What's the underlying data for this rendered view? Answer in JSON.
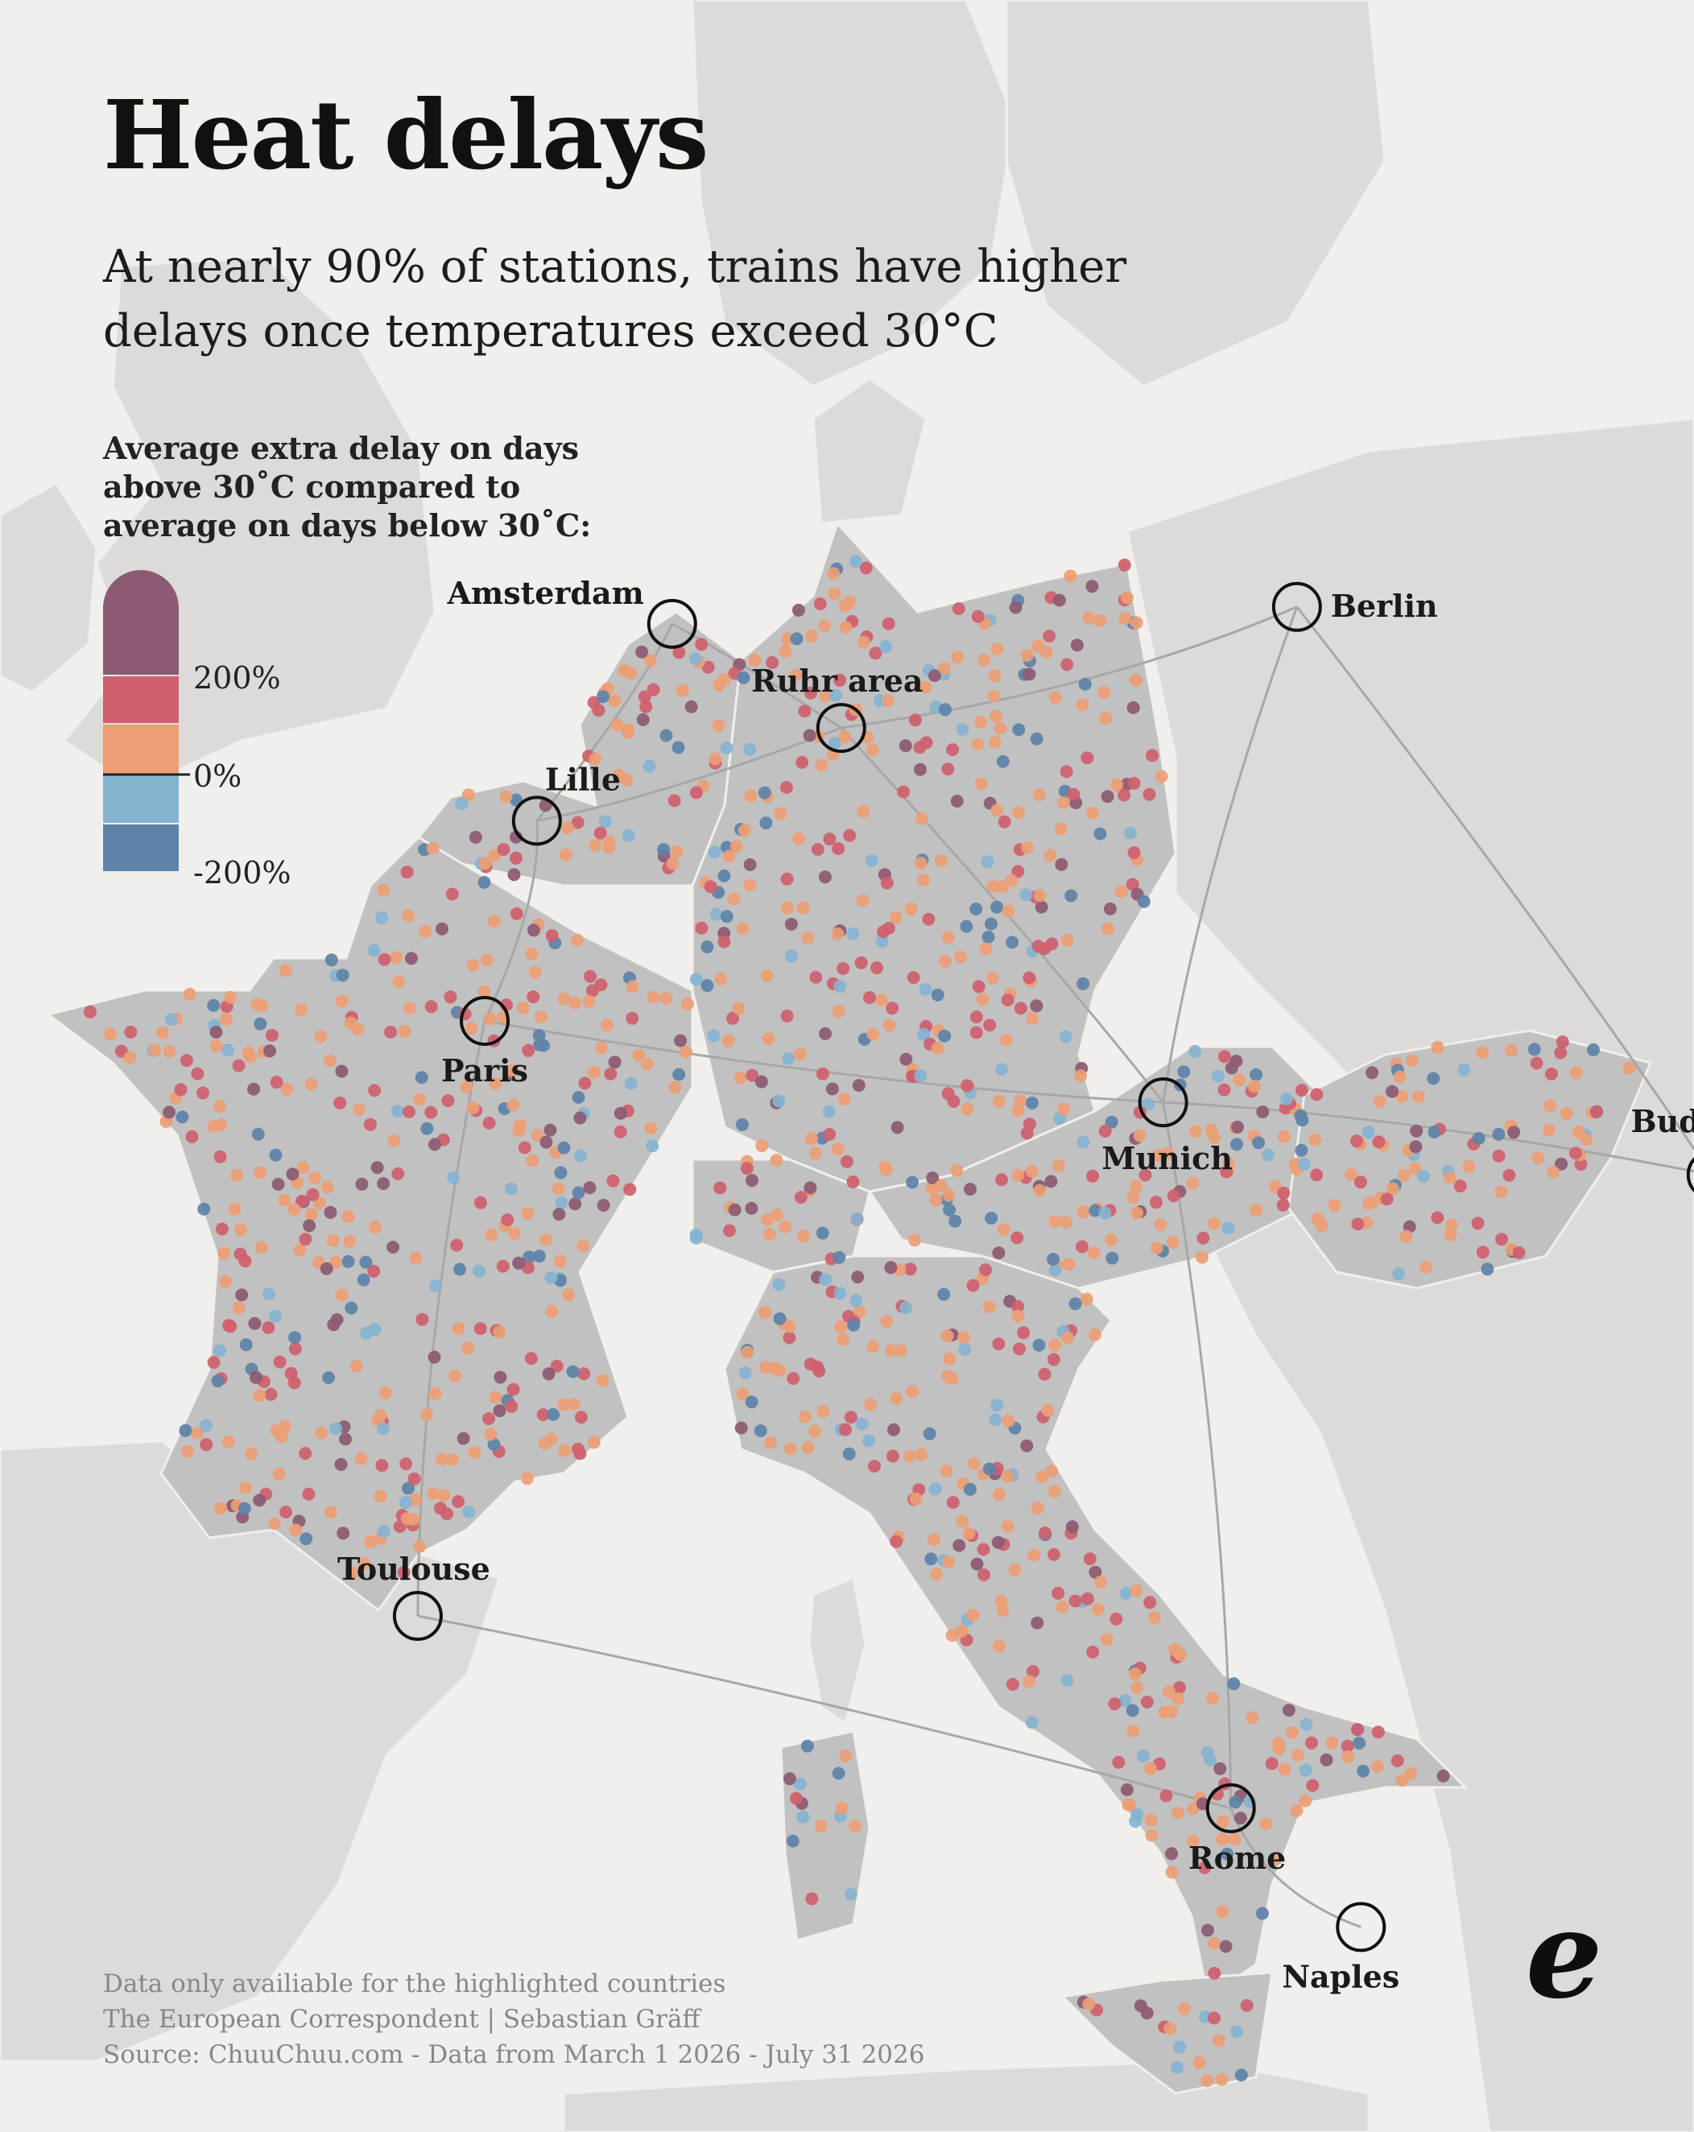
{
  "header": {
    "title": "Heat delays",
    "subtitle": "At nearly 90% of stations, trains have higher delays once temperatures exceed 30°C"
  },
  "legend": {
    "title": "Average extra delay on days above 30˚C compared to average on days below 30˚C:",
    "ticks": [
      "200%",
      "0%",
      "-200%"
    ],
    "colors": {
      "very_high": "#8c5a72",
      "high": "#cf5f6e",
      "slight": "#ec9e74",
      "slight_lower": "#86b3d0",
      "lower": "#5d83a8"
    }
  },
  "map": {
    "highlighted_countries": [
      "France",
      "Belgium",
      "Netherlands",
      "Germany",
      "Switzerland",
      "Austria",
      "Hungary",
      "Italy"
    ],
    "land_color": "#dcdbda",
    "highlight_color": "#c2c1c1",
    "cities": [
      {
        "name": "Amsterdam",
        "lon": 4.9,
        "lat": 52.37
      },
      {
        "name": "Berlin",
        "lon": 13.4,
        "lat": 52.52
      },
      {
        "name": "Ruhr area",
        "lon": 7.2,
        "lat": 51.45
      },
      {
        "name": "Lille",
        "lon": 3.06,
        "lat": 50.63
      },
      {
        "name": "Paris",
        "lon": 2.35,
        "lat": 48.86
      },
      {
        "name": "Munich",
        "lon": 11.58,
        "lat": 48.14
      },
      {
        "name": "Budapest",
        "lon": 19.04,
        "lat": 47.5
      },
      {
        "name": "Toulouse",
        "lon": 1.44,
        "lat": 43.6
      },
      {
        "name": "Rome",
        "lon": 12.5,
        "lat": 41.9
      },
      {
        "name": "Naples",
        "lon": 14.27,
        "lat": 40.85
      }
    ]
  },
  "footer": {
    "note": "Data only availiable for the highlighted countries",
    "credit": "The European Correspondent | Sebastian Gräff",
    "source": "Source: ChuuChuu.com - Data from March 1 2026 - July 31 2026"
  },
  "logo": {
    "icon": "tec-logo-icon",
    "text": "e"
  }
}
